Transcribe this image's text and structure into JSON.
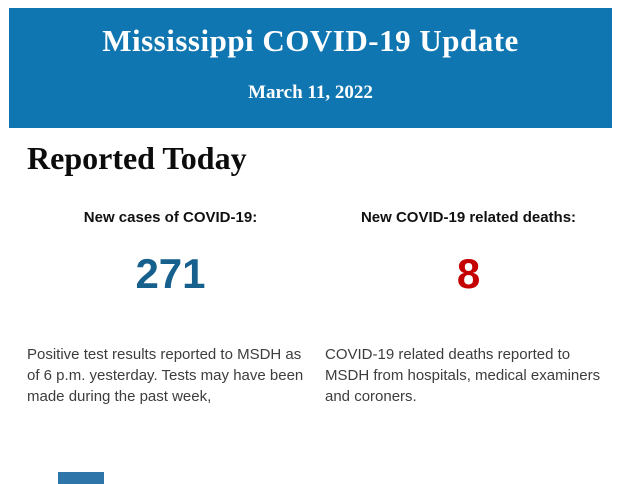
{
  "banner": {
    "title": "Mississippi COVID-19 Update",
    "date": "March 11, 2022",
    "background_color": "#0f76b1",
    "text_color": "#ffffff"
  },
  "section": {
    "heading": "Reported Today"
  },
  "stats": [
    {
      "label": "New cases of COVID-19:",
      "value": "271",
      "value_color": "#15608d",
      "description": "Positive test results reported to MSDH as of 6 p.m. yesterday. Tests may have been made during the past week,"
    },
    {
      "label": "New COVID-19 related deaths:",
      "value": "8",
      "value_color": "#c40000",
      "description": "COVID-19 related deaths reported to MSDH from hospitals, medical examiners and coroners."
    }
  ],
  "footer": {
    "clipped_element_color": "#2e76aa"
  }
}
